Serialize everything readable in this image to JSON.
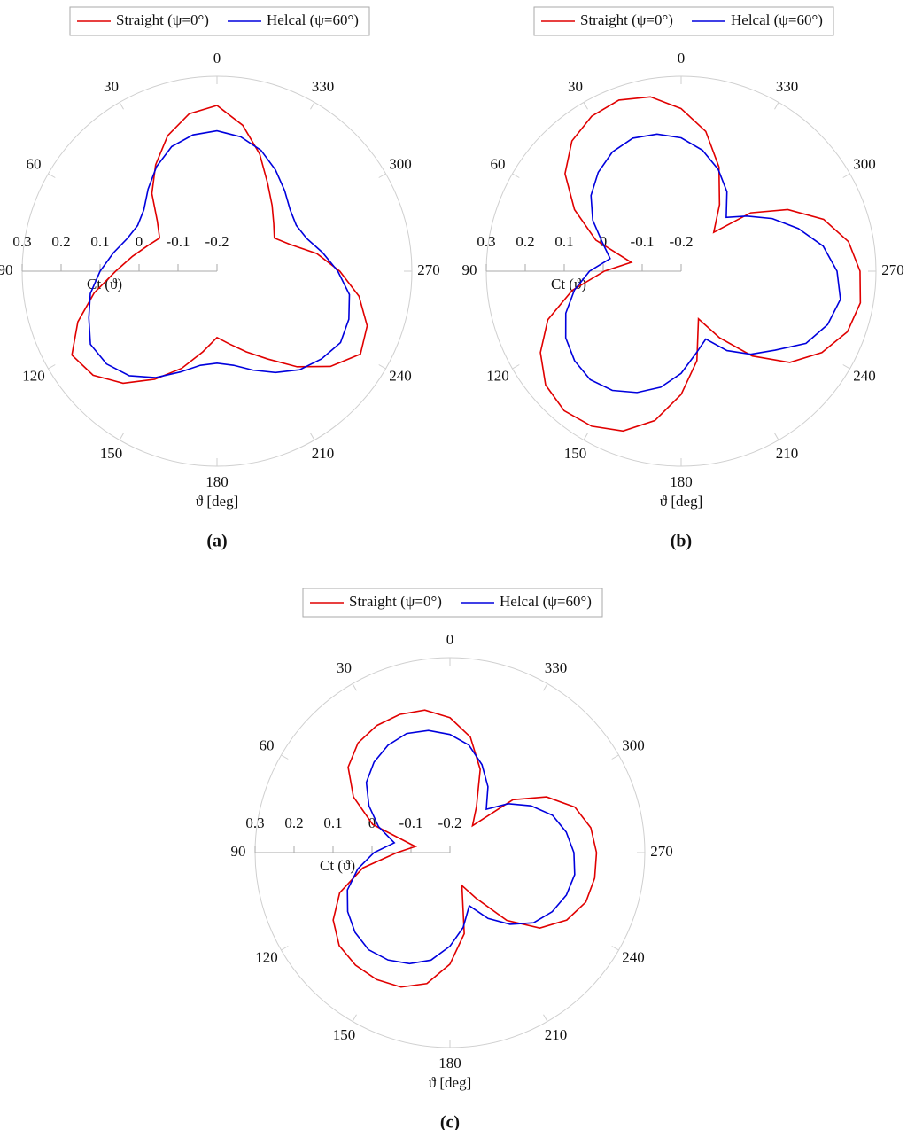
{
  "chart_data": [
    {
      "type": "polar",
      "caption": "(a)",
      "angle_label": "ϑ [deg]",
      "radial_label": "Ct (ϑ)",
      "angle_ticks": [
        0,
        30,
        60,
        90,
        120,
        150,
        180,
        210,
        240,
        270,
        300,
        330
      ],
      "rlim": [
        -0.2,
        0.3
      ],
      "rticks": [
        0.3,
        0.2,
        0.1,
        0,
        -0.1,
        -0.2
      ],
      "theta": [
        0,
        10,
        20,
        30,
        40,
        50,
        60,
        70,
        80,
        90,
        100,
        110,
        120,
        130,
        140,
        150,
        160,
        170,
        180,
        190,
        200,
        210,
        220,
        230,
        240,
        250,
        260,
        270,
        280,
        290,
        300,
        310,
        320,
        330,
        340,
        350
      ],
      "series": [
        {
          "name": "Straight (ψ=0°)",
          "color": "#e00000",
          "values": [
            0.225,
            0.21,
            0.17,
            0.115,
            0.06,
            0.0,
            -0.03,
            -0.01,
            0.02,
            0.06,
            0.12,
            0.18,
            0.23,
            0.215,
            0.175,
            0.12,
            0.065,
            0.01,
            -0.03,
            -0.01,
            0.02,
            0.06,
            0.12,
            0.18,
            0.225,
            0.21,
            0.17,
            0.115,
            0.06,
            0.0,
            -0.03,
            -0.01,
            0.02,
            0.06,
            0.12,
            0.18
          ]
        },
        {
          "name": "Helcal (ψ=60°)",
          "color": "#0000dd",
          "values": [
            0.16,
            0.155,
            0.14,
            0.11,
            0.075,
            0.045,
            0.035,
            0.045,
            0.07,
            0.1,
            0.13,
            0.15,
            0.175,
            0.17,
            0.15,
            0.115,
            0.075,
            0.045,
            0.036,
            0.045,
            0.07,
            0.1,
            0.13,
            0.15,
            0.166,
            0.16,
            0.145,
            0.11,
            0.075,
            0.045,
            0.035,
            0.045,
            0.07,
            0.1,
            0.13,
            0.15
          ]
        }
      ]
    },
    {
      "type": "polar",
      "caption": "(b)",
      "angle_label": "ϑ [deg]",
      "radial_label": "Ct (ϑ)",
      "angle_ticks": [
        0,
        30,
        60,
        90,
        120,
        150,
        180,
        210,
        240,
        270,
        300,
        330
      ],
      "rlim": [
        -0.2,
        0.3
      ],
      "rticks": [
        0.3,
        0.2,
        0.1,
        0,
        -0.1,
        -0.2
      ],
      "theta": [
        0,
        10,
        20,
        30,
        40,
        50,
        60,
        70,
        80,
        90,
        100,
        110,
        120,
        130,
        140,
        150,
        160,
        170,
        180,
        190,
        200,
        210,
        220,
        230,
        240,
        250,
        260,
        270,
        280,
        290,
        300,
        310,
        320,
        330,
        340,
        350
      ],
      "series": [
        {
          "name": "Straight (ψ=0°)",
          "color": "#e00000",
          "values": [
            0.217,
            0.254,
            0.267,
            0.259,
            0.236,
            0.189,
            0.116,
            0.033,
            -0.07,
            -0.003,
            0.084,
            0.164,
            0.217,
            0.254,
            0.267,
            0.259,
            0.236,
            0.189,
            0.116,
            0.033,
            -0.07,
            -0.003,
            0.084,
            0.164,
            0.217,
            0.254,
            0.267,
            0.259,
            0.236,
            0.189,
            0.116,
            0.033,
            -0.07,
            -0.003,
            0.084,
            0.164
          ]
        },
        {
          "name": "Helcal (ψ=60°)",
          "color": "#0000dd",
          "values": [
            0.142,
            0.157,
            0.163,
            0.153,
            0.131,
            0.102,
            0.062,
            0.015,
            -0.015,
            0.035,
            0.078,
            0.115,
            0.142,
            0.157,
            0.163,
            0.153,
            0.131,
            0.102,
            0.062,
            0.015,
            -0.015,
            0.035,
            0.078,
            0.115,
            0.17,
            0.2,
            0.215,
            0.2,
            0.17,
            0.12,
            0.07,
            0.02,
            -0.02,
            0.035,
            0.078,
            0.115
          ]
        }
      ]
    },
    {
      "type": "polar",
      "caption": "(c)",
      "angle_label": "ϑ [deg]",
      "radial_label": "Ct (ϑ)",
      "angle_ticks": [
        0,
        30,
        60,
        90,
        120,
        150,
        180,
        210,
        240,
        270,
        300,
        330
      ],
      "rlim": [
        -0.2,
        0.3
      ],
      "rticks": [
        0.3,
        0.2,
        0.1,
        0,
        -0.1,
        -0.2
      ],
      "theta": [
        0,
        10,
        20,
        30,
        40,
        50,
        60,
        70,
        80,
        90,
        100,
        110,
        120,
        130,
        140,
        150,
        160,
        170,
        180,
        190,
        200,
        210,
        220,
        230,
        240,
        250,
        260,
        270,
        280,
        290,
        300,
        310,
        320,
        330,
        340,
        350
      ],
      "series": [
        {
          "name": "Straight (ψ=0°)",
          "color": "#e00000",
          "values": [
            0.146,
            0.171,
            0.177,
            0.176,
            0.167,
            0.141,
            0.086,
            0.011,
            -0.11,
            -0.064,
            0.027,
            0.101,
            0.146,
            0.171,
            0.177,
            0.176,
            0.167,
            0.141,
            0.086,
            0.011,
            -0.11,
            -0.064,
            0.027,
            0.101,
            0.146,
            0.171,
            0.177,
            0.176,
            0.167,
            0.141,
            0.086,
            0.011,
            -0.11,
            -0.064,
            0.027,
            0.101
          ]
        },
        {
          "name": "Helcal (ψ=60°)",
          "color": "#0000dd",
          "values": [
            0.103,
            0.118,
            0.125,
            0.118,
            0.103,
            0.08,
            0.04,
            -0.005,
            -0.055,
            -0.005,
            0.04,
            0.08,
            0.103,
            0.118,
            0.125,
            0.118,
            0.103,
            0.08,
            0.04,
            -0.005,
            -0.055,
            -0.005,
            0.04,
            0.08,
            0.103,
            0.118,
            0.125,
            0.118,
            0.103,
            0.08,
            0.04,
            -0.005,
            -0.055,
            -0.005,
            0.04,
            0.08
          ]
        }
      ]
    }
  ]
}
